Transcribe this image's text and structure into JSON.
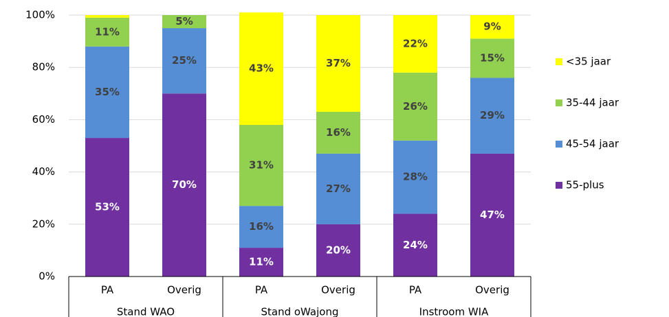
{
  "chart_data": {
    "type": "stacked_bar",
    "categories": [
      "PA",
      "Overig",
      "PA",
      "Overig",
      "PA",
      "Overig"
    ],
    "groups": [
      "Stand WAO",
      "Stand oWajong",
      "Instroom WIA"
    ],
    "series": [
      {
        "name": "55-plus",
        "color": "#7030a0",
        "label_color": "#ffffff",
        "values": [
          53,
          70,
          11,
          20,
          24,
          47
        ],
        "value_labels": [
          "53%",
          "70%",
          "11%",
          "20%",
          "24%",
          "47%"
        ]
      },
      {
        "name": "45-54 jaar",
        "color": "#558ed5",
        "label_color": "#404040",
        "values": [
          35,
          25,
          16,
          27,
          28,
          29
        ],
        "value_labels": [
          "35%",
          "25%",
          "16%",
          "27%",
          "28%",
          "29%"
        ]
      },
      {
        "name": "35-44 jaar",
        "color": "#92d050",
        "label_color": "#404040",
        "values": [
          11,
          5,
          31,
          16,
          26,
          15
        ],
        "value_labels": [
          "11%",
          "5%",
          "31%",
          "16%",
          "26%",
          "15%"
        ]
      },
      {
        "name": "<35 jaar",
        "color": "#ffff00",
        "label_color": "#404040",
        "values": [
          1,
          0,
          43,
          37,
          22,
          9
        ],
        "value_labels": [
          null,
          null,
          "43%",
          "37%",
          "22%",
          "9%"
        ]
      }
    ],
    "ylim": [
      0,
      100
    ],
    "yticks": [
      {
        "value": 0,
        "label": "0%"
      },
      {
        "value": 20,
        "label": "20%"
      },
      {
        "value": 40,
        "label": "40%"
      },
      {
        "value": 60,
        "label": "60%"
      },
      {
        "value": 80,
        "label": "80%"
      },
      {
        "value": 100,
        "label": "100%"
      }
    ],
    "grid": true,
    "legend": "right"
  }
}
